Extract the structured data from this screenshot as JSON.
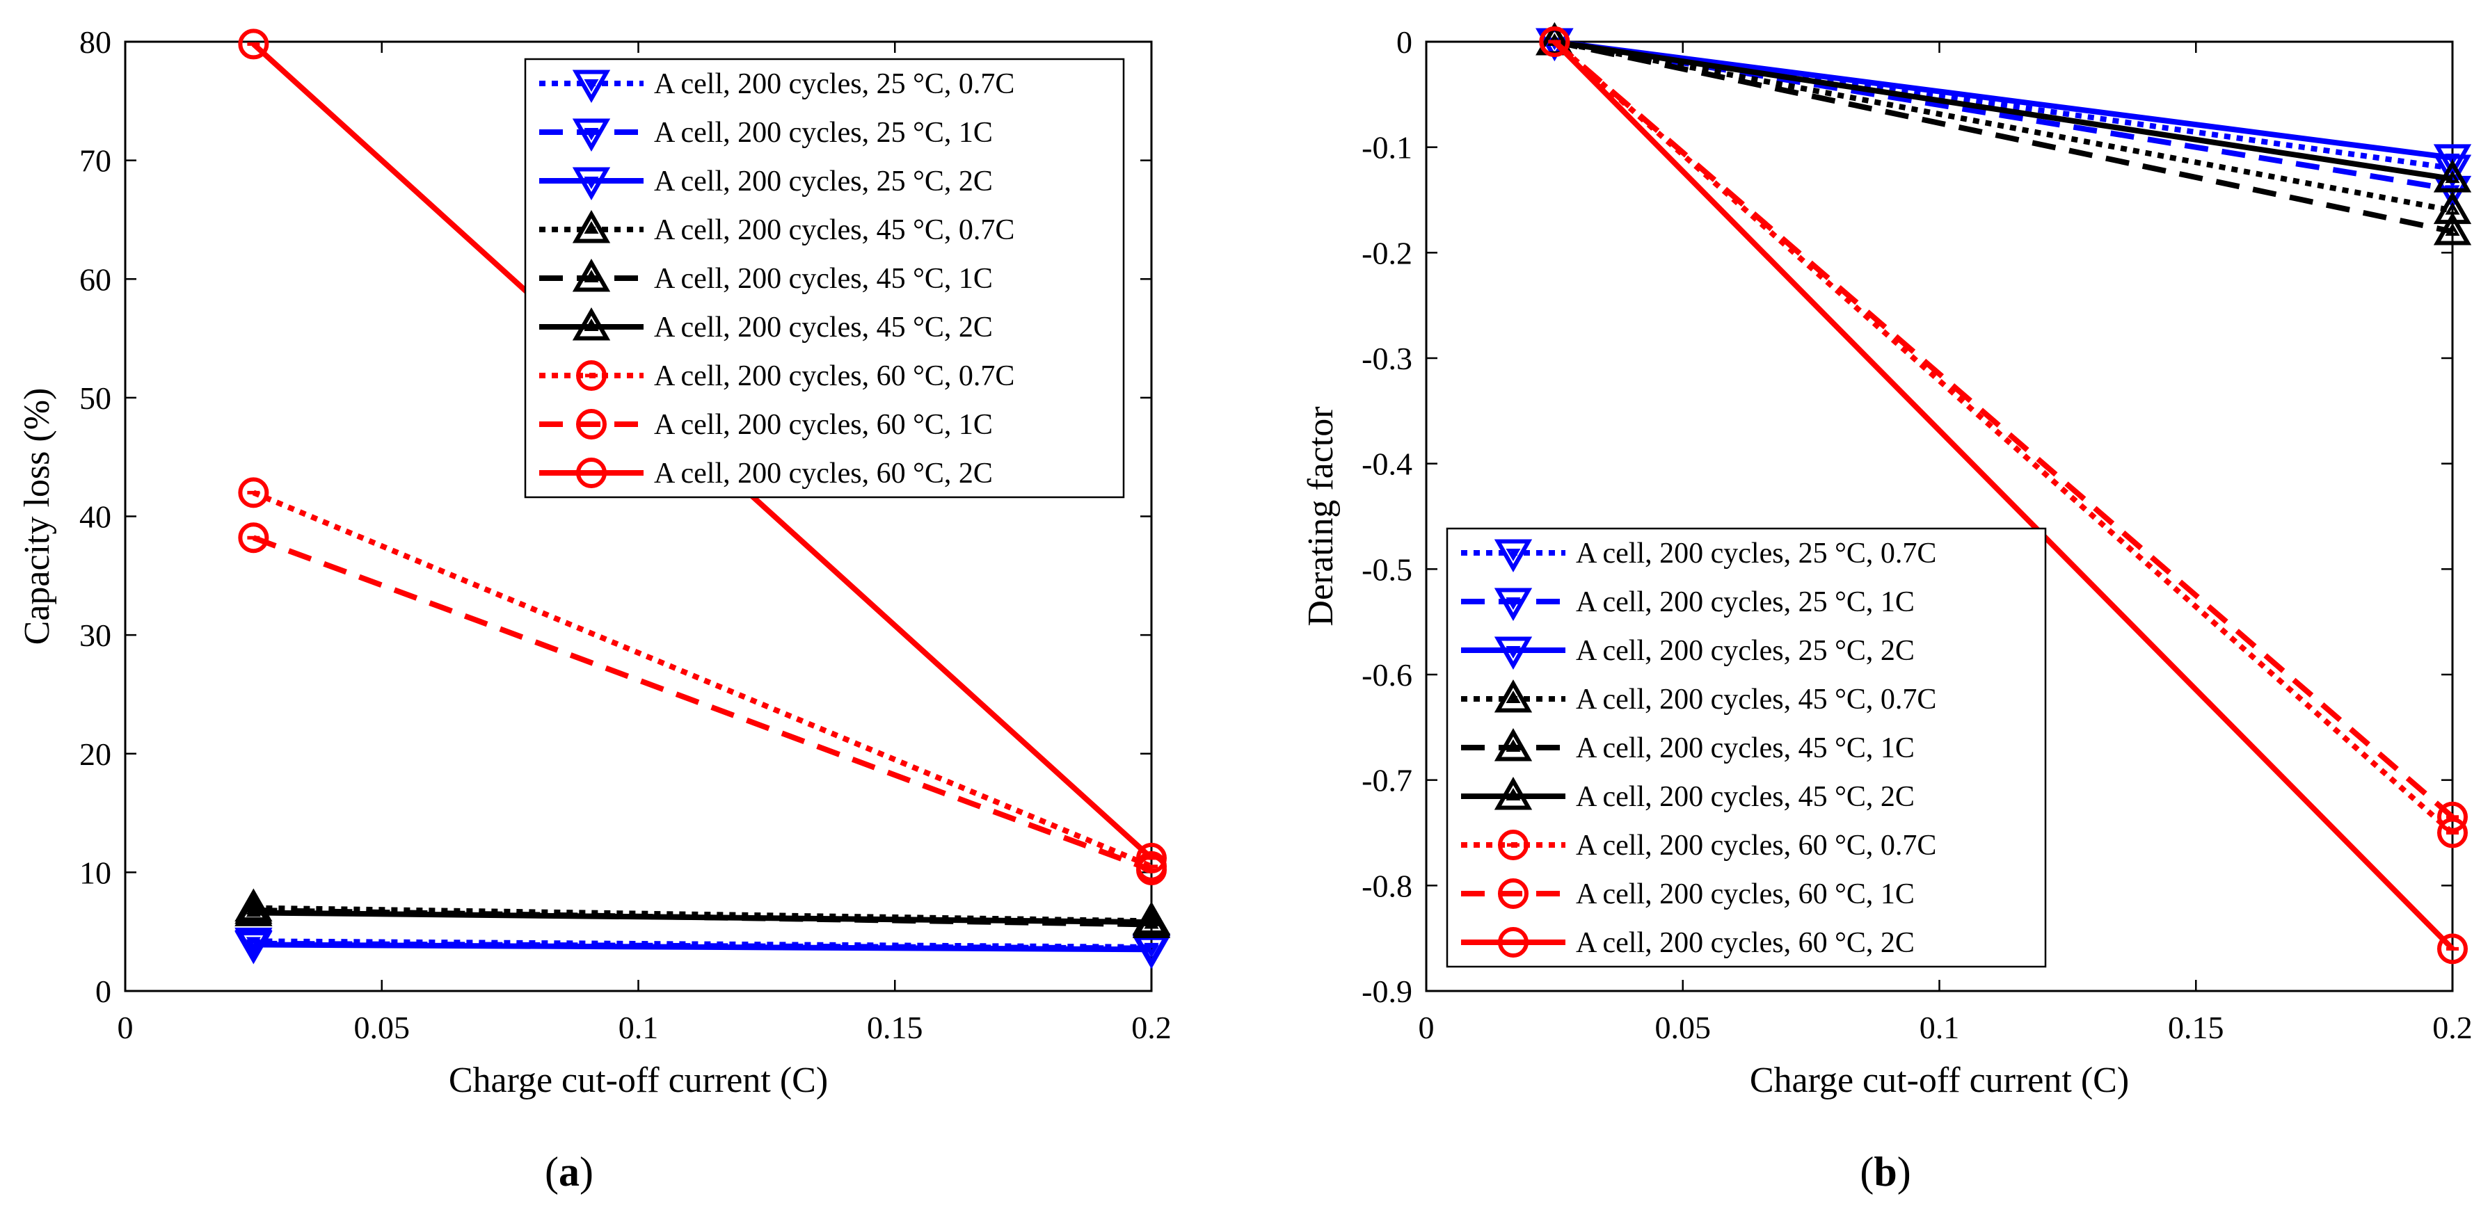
{
  "figure": {
    "panels": [
      {
        "label": "(a)",
        "label_bold": "a"
      },
      {
        "label": "(b)",
        "label_bold": "b"
      }
    ]
  },
  "colors": {
    "blue": "#0000ff",
    "black": "#000000",
    "red": "#ff0000"
  },
  "chart_data": [
    {
      "type": "line",
      "panel": "a",
      "title": "",
      "xlabel": "Charge cut-off current (C)",
      "ylabel": "Capacity loss (%)",
      "xlim": [
        0,
        0.2
      ],
      "ylim": [
        0,
        80
      ],
      "xticks": [
        0,
        0.05,
        0.1,
        0.15,
        0.2
      ],
      "xtick_labels": [
        "0",
        "0.05",
        "0.1",
        "0.15",
        "0.2"
      ],
      "yticks": [
        0,
        10,
        20,
        30,
        40,
        50,
        60,
        70,
        80
      ],
      "ytick_labels": [
        "0",
        "10",
        "20",
        "30",
        "40",
        "50",
        "60",
        "70",
        "80"
      ],
      "legend_position": "top-right",
      "x": [
        0.025,
        0.2
      ],
      "series": [
        {
          "name": "A cell, 200 cycles, 25 °C, 0.7C",
          "color": "blue",
          "dash": "dotted",
          "marker": "triangle-down",
          "values": [
            4.2,
            3.7
          ]
        },
        {
          "name": "A cell, 200 cycles, 25 °C, 1C",
          "color": "blue",
          "dash": "dashed",
          "marker": "triangle-down",
          "values": [
            4.0,
            3.6
          ]
        },
        {
          "name": "A cell, 200 cycles, 25 °C, 2C",
          "color": "blue",
          "dash": "solid",
          "marker": "triangle-down",
          "values": [
            3.9,
            3.5
          ]
        },
        {
          "name": "A cell, 200 cycles, 45 °C, 0.7C",
          "color": "black",
          "dash": "dotted",
          "marker": "triangle-up",
          "values": [
            7.0,
            5.9
          ]
        },
        {
          "name": "A cell, 200 cycles, 45 °C, 1C",
          "color": "black",
          "dash": "dashed",
          "marker": "triangle-up",
          "values": [
            6.8,
            5.6
          ]
        },
        {
          "name": "A cell, 200 cycles, 45 °C, 2C",
          "color": "black",
          "dash": "solid",
          "marker": "triangle-up",
          "values": [
            6.6,
            5.8
          ]
        },
        {
          "name": "A cell, 200 cycles, 60 °C, 0.7C",
          "color": "red",
          "dash": "dotted",
          "marker": "circle",
          "values": [
            42.0,
            10.5
          ]
        },
        {
          "name": "A cell, 200 cycles, 60 °C, 1C",
          "color": "red",
          "dash": "dashed",
          "marker": "circle",
          "values": [
            38.2,
            10.2
          ]
        },
        {
          "name": "A cell, 200 cycles, 60 °C, 2C",
          "color": "red",
          "dash": "solid",
          "marker": "circle",
          "values": [
            79.8,
            11.2
          ]
        }
      ]
    },
    {
      "type": "line",
      "panel": "b",
      "title": "",
      "xlabel": "Charge cut-off current (C)",
      "ylabel": "Derating factor",
      "xlim": [
        0,
        0.2
      ],
      "ylim": [
        -0.9,
        0
      ],
      "xticks": [
        0,
        0.05,
        0.1,
        0.15,
        0.2
      ],
      "xtick_labels": [
        "0",
        "0.05",
        "0.1",
        "0.15",
        "0.2"
      ],
      "yticks": [
        0,
        -0.1,
        -0.2,
        -0.3,
        -0.4,
        -0.5,
        -0.6,
        -0.7,
        -0.8,
        -0.9
      ],
      "ytick_labels": [
        "0",
        "-0.1",
        "-0.2",
        "-0.3",
        "-0.4",
        "-0.5",
        "-0.6",
        "-0.7",
        "-0.8",
        "-0.9"
      ],
      "legend_position": "bottom-left",
      "x": [
        0.025,
        0.2
      ],
      "series": [
        {
          "name": "A cell, 200 cycles, 25 °C, 0.7C",
          "color": "blue",
          "dash": "dotted",
          "marker": "triangle-down",
          "values": [
            0,
            -0.12
          ]
        },
        {
          "name": "A cell, 200 cycles, 25 °C, 1C",
          "color": "blue",
          "dash": "dashed",
          "marker": "triangle-down",
          "values": [
            0,
            -0.14
          ]
        },
        {
          "name": "A cell, 200 cycles, 25 °C, 2C",
          "color": "blue",
          "dash": "solid",
          "marker": "triangle-down",
          "values": [
            0,
            -0.11
          ]
        },
        {
          "name": "A cell, 200 cycles, 45 °C, 0.7C",
          "color": "black",
          "dash": "dotted",
          "marker": "triangle-up",
          "values": [
            0,
            -0.16
          ]
        },
        {
          "name": "A cell, 200 cycles, 45 °C, 1C",
          "color": "black",
          "dash": "dashed",
          "marker": "triangle-up",
          "values": [
            0,
            -0.18
          ]
        },
        {
          "name": "A cell, 200 cycles, 45 °C, 2C",
          "color": "black",
          "dash": "solid",
          "marker": "triangle-up",
          "values": [
            0,
            -0.13
          ]
        },
        {
          "name": "A cell, 200 cycles, 60 °C, 0.7C",
          "color": "red",
          "dash": "dotted",
          "marker": "circle",
          "values": [
            0,
            -0.75
          ]
        },
        {
          "name": "A cell, 200 cycles, 60 °C, 1C",
          "color": "red",
          "dash": "dashed",
          "marker": "circle",
          "values": [
            0,
            -0.735
          ]
        },
        {
          "name": "A cell, 200 cycles, 60 °C, 2C",
          "color": "red",
          "dash": "solid",
          "marker": "circle",
          "values": [
            0,
            -0.86
          ]
        }
      ]
    }
  ]
}
